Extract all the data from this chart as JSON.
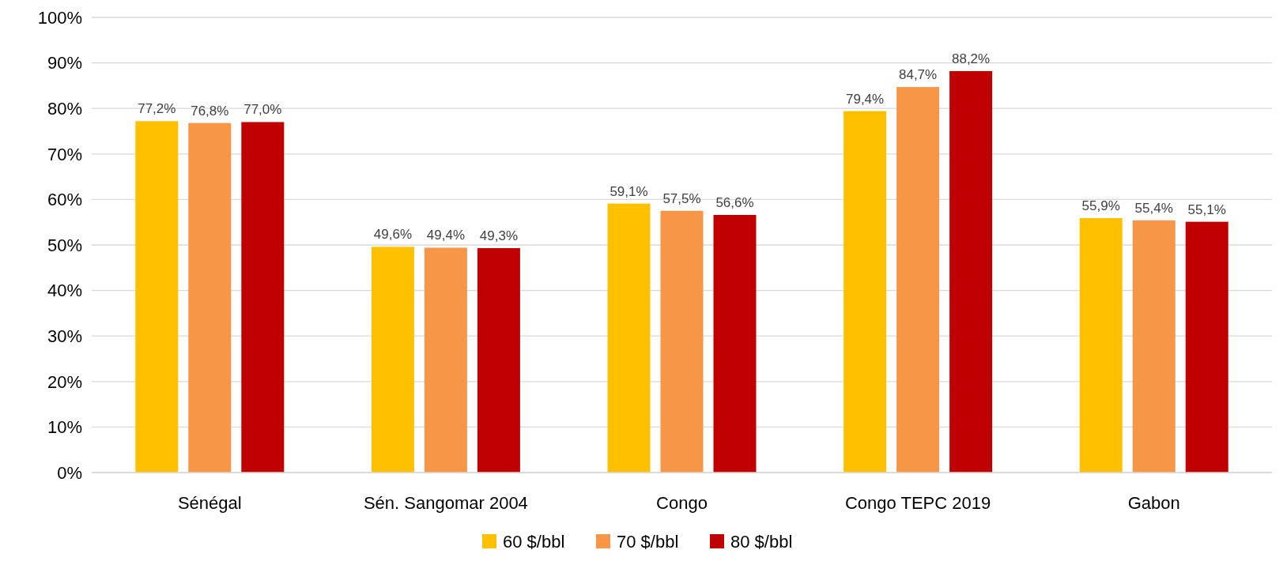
{
  "chart_data": {
    "type": "bar",
    "categories": [
      "Sénégal",
      "Sén. Sangomar 2004",
      "Congo",
      "Congo TEPC 2019",
      "Gabon"
    ],
    "series": [
      {
        "name": "60 $/bbl",
        "color": "#ffc000",
        "values": [
          77.2,
          49.6,
          59.1,
          79.4,
          55.9
        ],
        "value_labels": [
          "77,2%",
          "49,6%",
          "59,1%",
          "79,4%",
          "55,9%"
        ]
      },
      {
        "name": "70 $/bbl",
        "color": "#f79646",
        "values": [
          76.8,
          49.4,
          57.5,
          84.7,
          55.4
        ],
        "value_labels": [
          "76,8%",
          "49,4%",
          "57,5%",
          "84,7%",
          "55,4%"
        ]
      },
      {
        "name": "80 $/bbl",
        "color": "#c00000",
        "values": [
          77.0,
          49.3,
          56.6,
          88.2,
          55.1
        ],
        "value_labels": [
          "77,0%",
          "49,3%",
          "56,6%",
          "88,2%",
          "55,1%"
        ]
      }
    ],
    "ylim": [
      0,
      100
    ],
    "yticks": [
      {
        "value": 0,
        "label": "0%"
      },
      {
        "value": 10,
        "label": "10%"
      },
      {
        "value": 20,
        "label": "20%"
      },
      {
        "value": 30,
        "label": "30%"
      },
      {
        "value": 40,
        "label": "40%"
      },
      {
        "value": 50,
        "label": "50%"
      },
      {
        "value": 60,
        "label": "60%"
      },
      {
        "value": 70,
        "label": "70%"
      },
      {
        "value": 80,
        "label": "80%"
      },
      {
        "value": 90,
        "label": "90%"
      },
      {
        "value": 100,
        "label": "100%"
      }
    ],
    "grid": "y",
    "legend": "bottom"
  }
}
